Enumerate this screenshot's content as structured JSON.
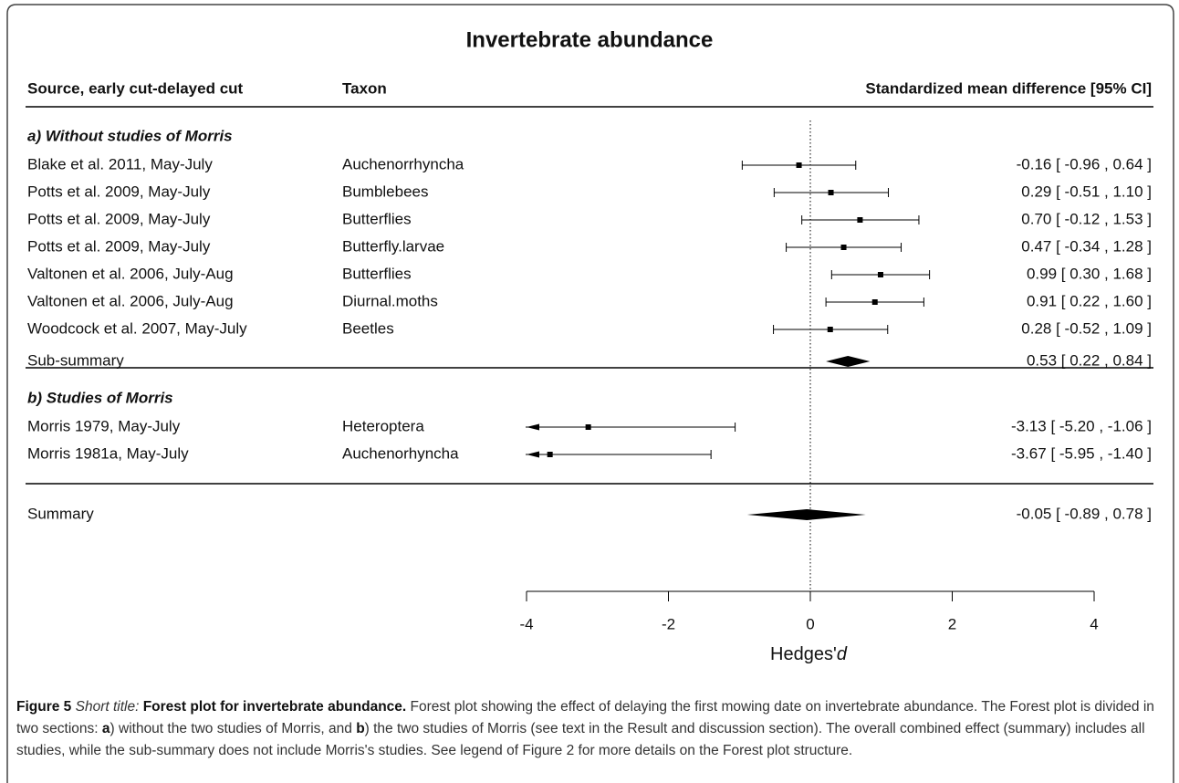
{
  "chart_data": {
    "type": "forest",
    "title": "Invertebrate abundance",
    "column_headers": [
      "Source, early cut-delayed cut",
      "Taxon",
      "Standardized mean difference [95% CI]"
    ],
    "sections": [
      {
        "label": "a) Without studies of Morris",
        "studies": [
          {
            "source": "Blake et al. 2011, May-July",
            "taxon": "Auchenorrhyncha",
            "estimate": -0.16,
            "lower": -0.96,
            "upper": 0.64,
            "value_label": "-0.16 [ -0.96 , 0.64 ]"
          },
          {
            "source": "Potts et al. 2009, May-July",
            "taxon": "Bumblebees",
            "estimate": 0.29,
            "lower": -0.51,
            "upper": 1.1,
            "value_label": "0.29 [ -0.51 , 1.10 ]"
          },
          {
            "source": "Potts et al. 2009, May-July",
            "taxon": "Butterflies",
            "estimate": 0.7,
            "lower": -0.12,
            "upper": 1.53,
            "value_label": "0.70 [ -0.12 , 1.53 ]"
          },
          {
            "source": "Potts et al. 2009, May-July",
            "taxon": "Butterfly.larvae",
            "estimate": 0.47,
            "lower": -0.34,
            "upper": 1.28,
            "value_label": "0.47 [ -0.34 , 1.28 ]"
          },
          {
            "source": "Valtonen et al. 2006, July-Aug",
            "taxon": "Butterflies",
            "estimate": 0.99,
            "lower": 0.3,
            "upper": 1.68,
            "value_label": "0.99 [  0.30 , 1.68 ]"
          },
          {
            "source": "Valtonen et al. 2006, July-Aug",
            "taxon": "Diurnal.moths",
            "estimate": 0.91,
            "lower": 0.22,
            "upper": 1.6,
            "value_label": "0.91 [  0.22 , 1.60 ]"
          },
          {
            "source": "Woodcock et al. 2007, May-July",
            "taxon": "Beetles",
            "estimate": 0.28,
            "lower": -0.52,
            "upper": 1.09,
            "value_label": "0.28 [ -0.52 , 1.09 ]"
          }
        ],
        "subsummary": {
          "label": "Sub-summary",
          "estimate": 0.53,
          "lower": 0.22,
          "upper": 0.84,
          "value_label": "0.53 [  0.22 , 0.84 ]"
        }
      },
      {
        "label": "b) Studies of Morris",
        "studies": [
          {
            "source": "Morris 1979, May-July",
            "taxon": "Heteroptera",
            "estimate": -3.13,
            "lower": -5.2,
            "upper": -1.06,
            "value_label": "-3.13 [ -5.20 , -1.06 ]"
          },
          {
            "source": "Morris 1981a, May-July",
            "taxon": "Auchenorhyncha",
            "estimate": -3.67,
            "lower": -5.95,
            "upper": -1.4,
            "value_label": "-3.67 [ -5.95 , -1.40 ]"
          }
        ]
      }
    ],
    "summary": {
      "label": "Summary",
      "estimate": -0.05,
      "lower": -0.89,
      "upper": 0.78,
      "value_label": "-0.05 [ -0.89 ,  0.78 ]"
    },
    "xlim": [
      -4,
      4
    ],
    "xticks": [
      -4,
      -2,
      0,
      2,
      4
    ],
    "xlabel": "Hedges'",
    "xlabel_italic": "d",
    "color": "#000000",
    "caption": [
      {
        "text": "Figure 5 ",
        "style": "bold"
      },
      {
        "text": "Short title: ",
        "style": "italic"
      },
      {
        "text": "Forest plot for invertebrate abundance.",
        "style": "bold"
      },
      {
        "text": " Forest plot showing the effect of delaying the first mowing date on invertebrate abundance. The Forest plot is divided in two sections: ",
        "style": "normal"
      },
      {
        "text": "a",
        "style": "bold"
      },
      {
        "text": ") without the two studies of Morris, and ",
        "style": "normal"
      },
      {
        "text": "b",
        "style": "bold"
      },
      {
        "text": ") the two studies of Morris (see text in the Result and discussion section). The overall combined effect (summary) includes all studies, while the sub-summary does not include Morris's studies. See legend of Figure 2 for more details on the Forest plot structure.",
        "style": "normal"
      }
    ]
  }
}
